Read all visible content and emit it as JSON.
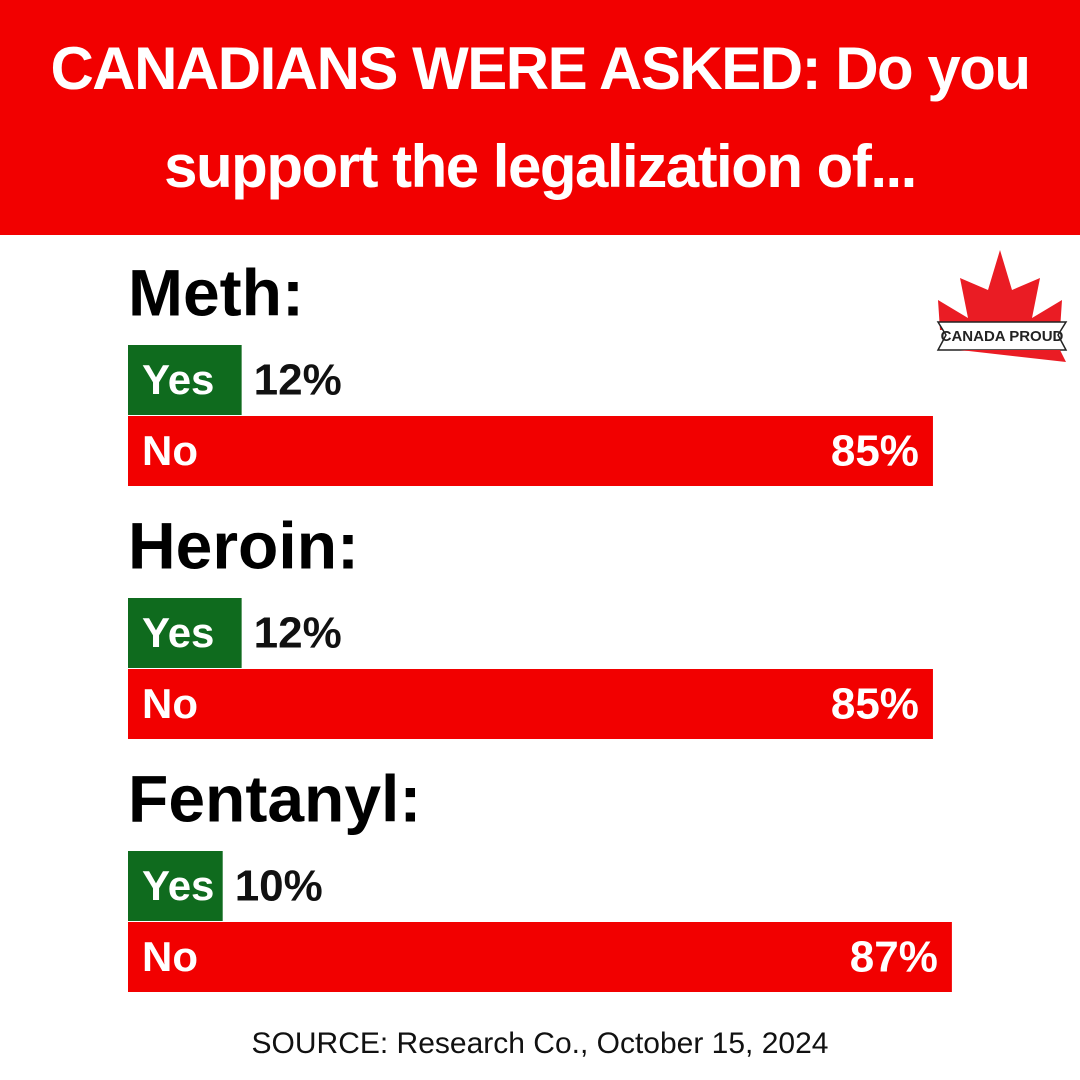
{
  "chart_data": {
    "type": "bar",
    "title": "CANADIANS WERE ASKED: Do you support the legalization of...",
    "categories": [
      "Meth:",
      "Heroin:",
      "Fentanyl:"
    ],
    "series": [
      {
        "name": "Yes",
        "color": "#0f6b1e",
        "values": [
          12,
          12,
          10
        ],
        "value_labels": [
          "12%",
          "12%",
          "10%"
        ]
      },
      {
        "name": "No",
        "color": "#f20000",
        "values": [
          85,
          85,
          87
        ],
        "value_labels": [
          "85%",
          "85%",
          "87%"
        ]
      }
    ],
    "source": "SOURCE: Research Co., October 15, 2024",
    "logo": "CANADA PROUD"
  }
}
